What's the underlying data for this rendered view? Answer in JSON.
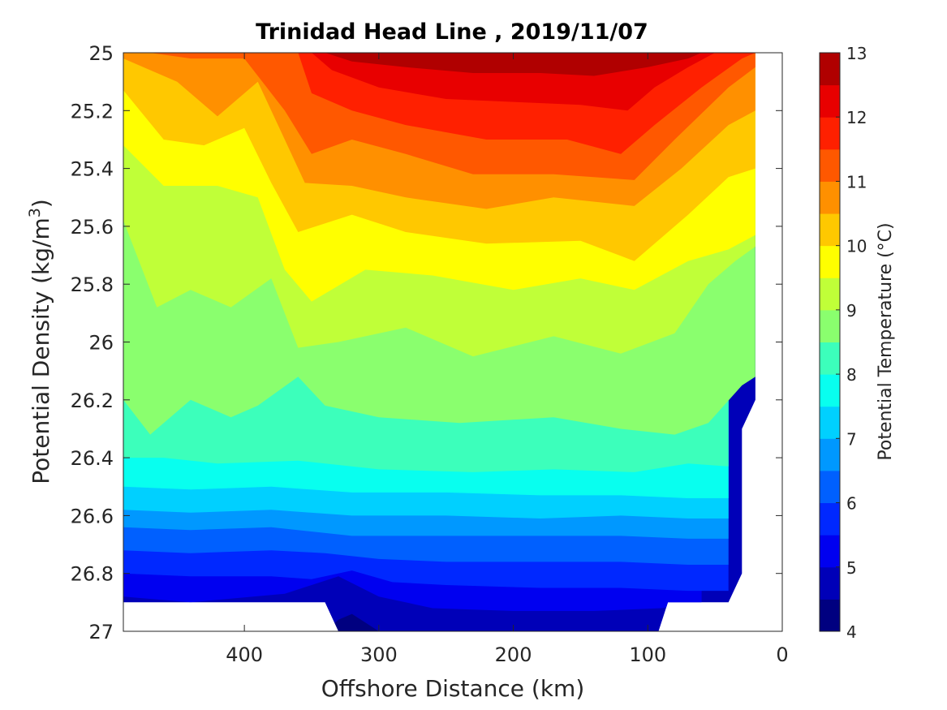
{
  "chart_data": {
    "type": "heatmap",
    "title": "Trinidad Head Line , 2019/11/07",
    "xlabel": "Offshore Distance (km)",
    "ylabel": "Potential Density (kg/m",
    "ylabel_sup": "3",
    "ylabel_end": ")",
    "colorbar_label": "Potential Temperature (°C)",
    "x_reversed": true,
    "y_reversed": true,
    "xlim": [
      490,
      0
    ],
    "ylim": [
      25,
      27
    ],
    "x_ticks": [
      400,
      300,
      200,
      100,
      0
    ],
    "x_tick_labels": [
      "400",
      "300",
      "200",
      "100",
      "0"
    ],
    "y_ticks": [
      25,
      25.2,
      25.4,
      25.6,
      25.8,
      26,
      26.2,
      26.4,
      26.6,
      26.8,
      27
    ],
    "y_tick_labels": [
      "25",
      "25.2",
      "25.4",
      "25.6",
      "25.8",
      "26",
      "26.2",
      "26.4",
      "26.6",
      "26.8",
      "27"
    ],
    "colorbar_range": [
      4,
      13
    ],
    "colorbar_ticks": [
      4,
      5,
      6,
      7,
      8,
      9,
      10,
      11,
      12,
      13
    ],
    "colorbar_tick_labels": [
      "4",
      "5",
      "6",
      "7",
      "8",
      "9",
      "10",
      "11",
      "12",
      "13"
    ],
    "levels": [
      4,
      4.5,
      5,
      5.5,
      6,
      6.5,
      7,
      7.5,
      8,
      8.5,
      9,
      9.5,
      10,
      10.5,
      11,
      11.5,
      12,
      12.5,
      13
    ],
    "level_colors": [
      "#000080",
      "#0000b8",
      "#0000f0",
      "#0028ff",
      "#0060ff",
      "#0098ff",
      "#00d0ff",
      "#08ffef",
      "#3cffbb",
      "#8aff6e",
      "#c0ff38",
      "#ffff00",
      "#ffc800",
      "#ff9000",
      "#ff5800",
      "#ff2000",
      "#e80000",
      "#b00000"
    ],
    "isotherms": [
      {
        "temp": 12.5,
        "points": [
          [
            490,
            25.0
          ],
          [
            340,
            25.0
          ],
          [
            320,
            25.03
          ],
          [
            280,
            25.05
          ],
          [
            230,
            25.07
          ],
          [
            180,
            25.07
          ],
          [
            140,
            25.08
          ],
          [
            100,
            25.05
          ],
          [
            70,
            25.02
          ],
          [
            60,
            25.0
          ]
        ]
      },
      {
        "temp": 12,
        "points": [
          [
            490,
            25.0
          ],
          [
            350,
            25.0
          ],
          [
            335,
            25.06
          ],
          [
            300,
            25.12
          ],
          [
            250,
            25.16
          ],
          [
            200,
            25.17
          ],
          [
            150,
            25.18
          ],
          [
            115,
            25.2
          ],
          [
            95,
            25.12
          ],
          [
            70,
            25.05
          ],
          [
            50,
            25.0
          ]
        ]
      },
      {
        "temp": 11.5,
        "points": [
          [
            490,
            25.0
          ],
          [
            360,
            25.0
          ],
          [
            350,
            25.14
          ],
          [
            320,
            25.2
          ],
          [
            280,
            25.25
          ],
          [
            220,
            25.3
          ],
          [
            160,
            25.3
          ],
          [
            120,
            25.35
          ],
          [
            95,
            25.25
          ],
          [
            60,
            25.12
          ],
          [
            30,
            25.02
          ],
          [
            20,
            25.0
          ]
        ]
      },
      {
        "temp": 11,
        "points": [
          [
            490,
            25.0
          ],
          [
            470,
            25.0
          ],
          [
            440,
            25.02
          ],
          [
            400,
            25.02
          ],
          [
            370,
            25.2
          ],
          [
            350,
            25.35
          ],
          [
            320,
            25.3
          ],
          [
            280,
            25.35
          ],
          [
            230,
            25.42
          ],
          [
            170,
            25.42
          ],
          [
            110,
            25.44
          ],
          [
            80,
            25.3
          ],
          [
            40,
            25.12
          ],
          [
            20,
            25.05
          ]
        ]
      },
      {
        "temp": 10.5,
        "points": [
          [
            490,
            25.02
          ],
          [
            450,
            25.1
          ],
          [
            420,
            25.22
          ],
          [
            390,
            25.1
          ],
          [
            370,
            25.3
          ],
          [
            355,
            25.45
          ],
          [
            320,
            25.46
          ],
          [
            280,
            25.5
          ],
          [
            220,
            25.54
          ],
          [
            170,
            25.5
          ],
          [
            110,
            25.53
          ],
          [
            75,
            25.4
          ],
          [
            40,
            25.25
          ],
          [
            20,
            25.2
          ]
        ]
      },
      {
        "temp": 10,
        "points": [
          [
            490,
            25.13
          ],
          [
            460,
            25.3
          ],
          [
            430,
            25.32
          ],
          [
            400,
            25.26
          ],
          [
            380,
            25.45
          ],
          [
            360,
            25.62
          ],
          [
            320,
            25.56
          ],
          [
            280,
            25.62
          ],
          [
            220,
            25.66
          ],
          [
            150,
            25.65
          ],
          [
            110,
            25.72
          ],
          [
            70,
            25.56
          ],
          [
            40,
            25.43
          ],
          [
            20,
            25.4
          ]
        ]
      },
      {
        "temp": 9.5,
        "points": [
          [
            490,
            25.32
          ],
          [
            460,
            25.46
          ],
          [
            420,
            25.46
          ],
          [
            390,
            25.5
          ],
          [
            370,
            25.75
          ],
          [
            350,
            25.86
          ],
          [
            310,
            25.75
          ],
          [
            260,
            25.77
          ],
          [
            200,
            25.82
          ],
          [
            150,
            25.78
          ],
          [
            110,
            25.82
          ],
          [
            70,
            25.72
          ],
          [
            40,
            25.68
          ],
          [
            20,
            25.63
          ]
        ]
      },
      {
        "temp": 9,
        "points": [
          [
            490,
            25.58
          ],
          [
            465,
            25.88
          ],
          [
            440,
            25.82
          ],
          [
            410,
            25.88
          ],
          [
            380,
            25.78
          ],
          [
            360,
            26.02
          ],
          [
            330,
            26.0
          ],
          [
            280,
            25.95
          ],
          [
            230,
            26.05
          ],
          [
            170,
            25.98
          ],
          [
            120,
            26.04
          ],
          [
            80,
            25.97
          ],
          [
            55,
            25.8
          ],
          [
            35,
            25.72
          ],
          [
            20,
            25.67
          ]
        ]
      },
      {
        "temp": 8.5,
        "points": [
          [
            490,
            26.2
          ],
          [
            470,
            26.32
          ],
          [
            440,
            26.2
          ],
          [
            410,
            26.26
          ],
          [
            390,
            26.22
          ],
          [
            360,
            26.12
          ],
          [
            340,
            26.22
          ],
          [
            300,
            26.26
          ],
          [
            240,
            26.28
          ],
          [
            170,
            26.26
          ],
          [
            120,
            26.3
          ],
          [
            80,
            26.32
          ],
          [
            55,
            26.28
          ],
          [
            30,
            26.15
          ],
          [
            20,
            26.12
          ]
        ]
      },
      {
        "temp": 8,
        "points": [
          [
            490,
            26.4
          ],
          [
            460,
            26.4
          ],
          [
            420,
            26.42
          ],
          [
            360,
            26.41
          ],
          [
            300,
            26.44
          ],
          [
            230,
            26.45
          ],
          [
            170,
            26.44
          ],
          [
            110,
            26.45
          ],
          [
            70,
            26.42
          ],
          [
            40,
            26.43
          ]
        ]
      },
      {
        "temp": 7.5,
        "points": [
          [
            490,
            26.5
          ],
          [
            440,
            26.51
          ],
          [
            380,
            26.5
          ],
          [
            320,
            26.52
          ],
          [
            250,
            26.52
          ],
          [
            180,
            26.53
          ],
          [
            120,
            26.53
          ],
          [
            70,
            26.54
          ],
          [
            40,
            26.54
          ]
        ]
      },
      {
        "temp": 7,
        "points": [
          [
            490,
            26.58
          ],
          [
            440,
            26.59
          ],
          [
            380,
            26.58
          ],
          [
            320,
            26.6
          ],
          [
            250,
            26.6
          ],
          [
            180,
            26.61
          ],
          [
            120,
            26.6
          ],
          [
            70,
            26.61
          ],
          [
            40,
            26.61
          ]
        ]
      },
      {
        "temp": 6.5,
        "points": [
          [
            490,
            26.64
          ],
          [
            440,
            26.65
          ],
          [
            380,
            26.64
          ],
          [
            320,
            26.67
          ],
          [
            250,
            26.67
          ],
          [
            180,
            26.67
          ],
          [
            120,
            26.67
          ],
          [
            70,
            26.68
          ],
          [
            40,
            26.68
          ]
        ]
      },
      {
        "temp": 6,
        "points": [
          [
            490,
            26.72
          ],
          [
            440,
            26.73
          ],
          [
            380,
            26.72
          ],
          [
            340,
            26.73
          ],
          [
            300,
            26.75
          ],
          [
            250,
            26.76
          ],
          [
            180,
            26.76
          ],
          [
            120,
            26.76
          ],
          [
            70,
            26.77
          ],
          [
            40,
            26.77
          ]
        ]
      },
      {
        "temp": 5.5,
        "points": [
          [
            490,
            26.8
          ],
          [
            440,
            26.81
          ],
          [
            380,
            26.81
          ],
          [
            350,
            26.82
          ],
          [
            320,
            26.79
          ],
          [
            290,
            26.83
          ],
          [
            250,
            26.84
          ],
          [
            180,
            26.85
          ],
          [
            120,
            26.85
          ],
          [
            70,
            26.86
          ],
          [
            40,
            26.86
          ]
        ]
      },
      {
        "temp": 5,
        "points": [
          [
            490,
            26.88
          ],
          [
            440,
            26.9
          ],
          [
            370,
            26.87
          ],
          [
            330,
            26.81
          ],
          [
            300,
            26.88
          ],
          [
            260,
            26.92
          ],
          [
            200,
            26.93
          ],
          [
            140,
            26.93
          ],
          [
            90,
            26.92
          ],
          [
            60,
            26.9
          ]
        ]
      },
      {
        "temp": 4.5,
        "points": [
          [
            340,
            27.0
          ],
          [
            330,
            26.96
          ],
          [
            320,
            26.94
          ],
          [
            300,
            27.0
          ]
        ]
      }
    ],
    "data_domain": [
      [
        490,
        25.0
      ],
      [
        20,
        25.0
      ],
      [
        20,
        26.2
      ],
      [
        30,
        26.3
      ],
      [
        30,
        26.8
      ],
      [
        40,
        26.9
      ],
      [
        85,
        26.9
      ],
      [
        92,
        27.0
      ],
      [
        330,
        27.0
      ],
      [
        340,
        26.9
      ],
      [
        490,
        26.9
      ]
    ]
  }
}
